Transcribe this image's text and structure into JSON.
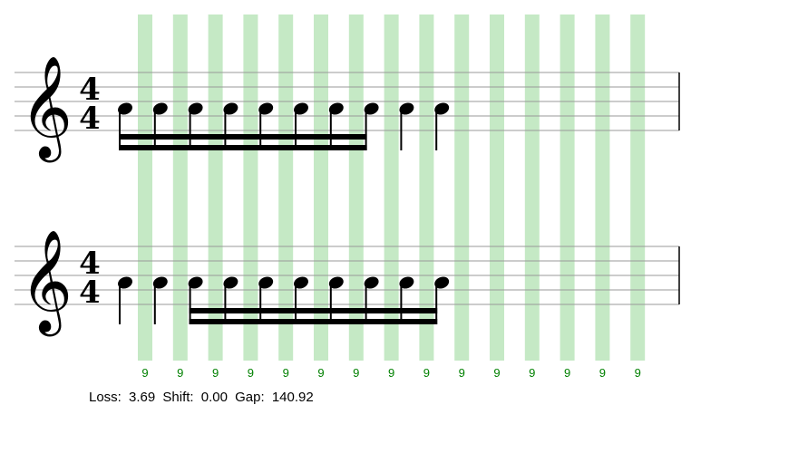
{
  "colors": {
    "band": "#c5e9c5",
    "staff_line": "#999999",
    "ink": "#000000",
    "label": "#008000",
    "loss": "#ff0000"
  },
  "time_signature": {
    "numerator": "4",
    "denominator": "4"
  },
  "clef": {
    "glyph": "𝄞",
    "icon": "treble-clef-icon"
  },
  "beat_labels": [
    "9",
    "9",
    "9",
    "9",
    "9",
    "9",
    "9",
    "9",
    "9",
    "9",
    "9",
    "9",
    "9",
    "9",
    "9"
  ],
  "status": {
    "loss_label": "Loss:",
    "loss": "3.69",
    "shift_label": "Shift:",
    "shift": "0.00",
    "gap_label": "Gap:",
    "gap": "140.92"
  },
  "staves": [
    {
      "notes": [
        {
          "beamed": true
        },
        {
          "beamed": true
        },
        {
          "beamed": true
        },
        {
          "beamed": true
        },
        {
          "beamed": true
        },
        {
          "beamed": true
        },
        {
          "beamed": true
        },
        {
          "beamed": true
        },
        {
          "beamed": false
        },
        {
          "beamed": false
        }
      ]
    },
    {
      "notes": [
        {
          "beamed": false
        },
        {
          "beamed": false
        },
        {
          "beamed": true
        },
        {
          "beamed": true
        },
        {
          "beamed": true
        },
        {
          "beamed": true
        },
        {
          "beamed": true
        },
        {
          "beamed": true
        },
        {
          "beamed": true
        },
        {
          "beamed": true
        }
      ]
    }
  ]
}
